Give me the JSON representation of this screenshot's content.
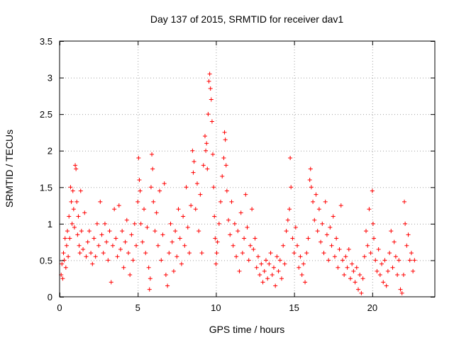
{
  "chart_data": {
    "type": "scatter",
    "title": "Day 137 of 2015, SRMTID for receiver dav1",
    "xlabel": "GPS time / hours",
    "ylabel": "SRMTID / TECUs",
    "xlim": [
      0,
      24
    ],
    "ylim": [
      0,
      3.5
    ],
    "xticks": [
      0,
      5,
      10,
      15,
      20
    ],
    "xtick_labels": [
      "0",
      "5",
      "10",
      "15",
      "20"
    ],
    "yticks": [
      0,
      0.5,
      1,
      1.5,
      2,
      2.5,
      3,
      3.5
    ],
    "ytick_labels": [
      "0",
      "0.5",
      "1",
      "1.5",
      "2",
      "2.5",
      "3",
      "3.5"
    ],
    "grid": true,
    "marker": "+",
    "color": "#ff0000",
    "series": [
      {
        "name": "dav1",
        "points": [
          [
            0.1,
            0.3
          ],
          [
            0.15,
            0.45
          ],
          [
            0.2,
            0.25
          ],
          [
            0.25,
            0.6
          ],
          [
            0.3,
            0.5
          ],
          [
            0.35,
            0.8
          ],
          [
            0.4,
            0.4
          ],
          [
            0.45,
            0.7
          ],
          [
            0.5,
            0.9
          ],
          [
            0.55,
            0.55
          ],
          [
            0.6,
            1.1
          ],
          [
            0.65,
            0.8
          ],
          [
            0.7,
            1.5
          ],
          [
            0.75,
            1.3
          ],
          [
            0.8,
            1.0
          ],
          [
            0.85,
            1.45
          ],
          [
            0.9,
            1.2
          ],
          [
            0.95,
            0.95
          ],
          [
            1.0,
            1.8
          ],
          [
            1.05,
            1.75
          ],
          [
            1.1,
            1.3
          ],
          [
            1.15,
            0.85
          ],
          [
            1.2,
            1.1
          ],
          [
            1.25,
            0.7
          ],
          [
            1.3,
            0.6
          ],
          [
            1.35,
            1.45
          ],
          [
            1.4,
            0.9
          ],
          [
            1.5,
            0.65
          ],
          [
            1.6,
            1.15
          ],
          [
            1.7,
            0.55
          ],
          [
            1.8,
            0.75
          ],
          [
            1.9,
            0.9
          ],
          [
            2.0,
            0.6
          ],
          [
            2.1,
            0.45
          ],
          [
            2.2,
            0.8
          ],
          [
            2.3,
            0.55
          ],
          [
            2.4,
            1.0
          ],
          [
            2.5,
            0.7
          ],
          [
            2.6,
            1.3
          ],
          [
            2.7,
            0.85
          ],
          [
            2.8,
            0.6
          ],
          [
            2.9,
            1.0
          ],
          [
            3.0,
            0.75
          ],
          [
            3.1,
            0.5
          ],
          [
            3.2,
            0.9
          ],
          [
            3.3,
            0.2
          ],
          [
            3.4,
            0.7
          ],
          [
            3.5,
            1.2
          ],
          [
            3.6,
            0.8
          ],
          [
            3.7,
            0.55
          ],
          [
            3.8,
            1.25
          ],
          [
            3.9,
            0.65
          ],
          [
            4.0,
            0.9
          ],
          [
            4.1,
            0.4
          ],
          [
            4.2,
            0.75
          ],
          [
            4.3,
            1.05
          ],
          [
            4.4,
            0.6
          ],
          [
            4.5,
            0.3
          ],
          [
            4.6,
            0.85
          ],
          [
            4.7,
            0.5
          ],
          [
            4.8,
            1.0
          ],
          [
            4.9,
            0.7
          ],
          [
            5.0,
            1.3
          ],
          [
            5.05,
            1.9
          ],
          [
            5.1,
            1.6
          ],
          [
            5.15,
            1.45
          ],
          [
            5.2,
            1.0
          ],
          [
            5.3,
            0.75
          ],
          [
            5.4,
            1.2
          ],
          [
            5.5,
            0.6
          ],
          [
            5.6,
            0.95
          ],
          [
            5.7,
            0.4
          ],
          [
            5.75,
            0.1
          ],
          [
            5.8,
            0.25
          ],
          [
            5.85,
            1.5
          ],
          [
            5.9,
            1.95
          ],
          [
            5.95,
            1.75
          ],
          [
            6.0,
            1.3
          ],
          [
            6.1,
            0.9
          ],
          [
            6.2,
            1.15
          ],
          [
            6.3,
            0.7
          ],
          [
            6.4,
            1.45
          ],
          [
            6.5,
            0.5
          ],
          [
            6.6,
            0.85
          ],
          [
            6.7,
            1.55
          ],
          [
            6.8,
            0.3
          ],
          [
            6.9,
            0.15
          ],
          [
            7.0,
            0.6
          ],
          [
            7.1,
            1.0
          ],
          [
            7.2,
            0.75
          ],
          [
            7.3,
            0.35
          ],
          [
            7.4,
            0.9
          ],
          [
            7.5,
            0.55
          ],
          [
            7.6,
            1.2
          ],
          [
            7.7,
            0.8
          ],
          [
            7.8,
            0.45
          ],
          [
            7.9,
            1.1
          ],
          [
            8.0,
            0.7
          ],
          [
            8.1,
            1.5
          ],
          [
            8.2,
            0.95
          ],
          [
            8.3,
            0.6
          ],
          [
            8.4,
            1.25
          ],
          [
            8.5,
            2.0
          ],
          [
            8.55,
            1.7
          ],
          [
            8.6,
            1.85
          ],
          [
            8.7,
            1.2
          ],
          [
            8.8,
            1.55
          ],
          [
            8.9,
            0.9
          ],
          [
            9.0,
            1.4
          ],
          [
            9.1,
            0.6
          ],
          [
            9.2,
            1.8
          ],
          [
            9.3,
            2.2
          ],
          [
            9.35,
            2.0
          ],
          [
            9.4,
            2.1
          ],
          [
            9.45,
            1.75
          ],
          [
            9.5,
            2.5
          ],
          [
            9.55,
            2.95
          ],
          [
            9.6,
            3.05
          ],
          [
            9.65,
            2.85
          ],
          [
            9.7,
            2.7
          ],
          [
            9.75,
            2.4
          ],
          [
            9.8,
            1.95
          ],
          [
            9.85,
            1.5
          ],
          [
            9.9,
            1.1
          ],
          [
            9.95,
            0.8
          ],
          [
            10.0,
            0.45
          ],
          [
            10.05,
            0.6
          ],
          [
            10.1,
            0.75
          ],
          [
            10.2,
            1.0
          ],
          [
            10.3,
            1.3
          ],
          [
            10.4,
            1.65
          ],
          [
            10.5,
            1.9
          ],
          [
            10.55,
            2.25
          ],
          [
            10.6,
            2.15
          ],
          [
            10.65,
            1.8
          ],
          [
            10.7,
            1.45
          ],
          [
            10.8,
            1.05
          ],
          [
            10.9,
            0.85
          ],
          [
            11.0,
            1.3
          ],
          [
            11.1,
            0.7
          ],
          [
            11.2,
            1.0
          ],
          [
            11.3,
            0.55
          ],
          [
            11.4,
            0.9
          ],
          [
            11.5,
            0.35
          ],
          [
            11.6,
            1.15
          ],
          [
            11.7,
            0.6
          ],
          [
            11.8,
            0.8
          ],
          [
            11.9,
            1.4
          ],
          [
            12.0,
            0.95
          ],
          [
            12.1,
            0.5
          ],
          [
            12.2,
            0.7
          ],
          [
            12.3,
            1.2
          ],
          [
            12.4,
            0.65
          ],
          [
            12.5,
            0.8
          ],
          [
            12.6,
            0.4
          ],
          [
            12.7,
            0.55
          ],
          [
            12.8,
            0.3
          ],
          [
            12.9,
            0.45
          ],
          [
            13.0,
            0.2
          ],
          [
            13.1,
            0.35
          ],
          [
            13.2,
            0.5
          ],
          [
            13.3,
            0.25
          ],
          [
            13.4,
            0.45
          ],
          [
            13.5,
            0.6
          ],
          [
            13.6,
            0.3
          ],
          [
            13.7,
            0.4
          ],
          [
            13.8,
            0.15
          ],
          [
            13.9,
            0.55
          ],
          [
            14.0,
            0.35
          ],
          [
            14.1,
            0.5
          ],
          [
            14.2,
            0.25
          ],
          [
            14.3,
            0.7
          ],
          [
            14.4,
            0.45
          ],
          [
            14.5,
            0.9
          ],
          [
            14.6,
            1.05
          ],
          [
            14.7,
            1.2
          ],
          [
            14.75,
            1.9
          ],
          [
            14.8,
            1.5
          ],
          [
            14.9,
            0.8
          ],
          [
            15.0,
            0.6
          ],
          [
            15.1,
            0.95
          ],
          [
            15.2,
            0.7
          ],
          [
            15.3,
            0.4
          ],
          [
            15.4,
            0.55
          ],
          [
            15.5,
            0.3
          ],
          [
            15.6,
            0.45
          ],
          [
            15.7,
            0.2
          ],
          [
            15.8,
            0.6
          ],
          [
            15.9,
            0.8
          ],
          [
            16.0,
            1.6
          ],
          [
            16.05,
            1.75
          ],
          [
            16.1,
            1.5
          ],
          [
            16.2,
            1.3
          ],
          [
            16.3,
            1.05
          ],
          [
            16.4,
            1.4
          ],
          [
            16.5,
            0.9
          ],
          [
            16.6,
            1.2
          ],
          [
            16.7,
            0.75
          ],
          [
            16.8,
            1.0
          ],
          [
            16.9,
            0.6
          ],
          [
            17.0,
            1.3
          ],
          [
            17.1,
            0.85
          ],
          [
            17.2,
            0.5
          ],
          [
            17.3,
            0.95
          ],
          [
            17.4,
            0.7
          ],
          [
            17.5,
            1.1
          ],
          [
            17.6,
            0.55
          ],
          [
            17.7,
            0.8
          ],
          [
            17.8,
            0.4
          ],
          [
            17.9,
            0.65
          ],
          [
            18.0,
            1.25
          ],
          [
            18.1,
            0.5
          ],
          [
            18.2,
            0.3
          ],
          [
            18.3,
            0.55
          ],
          [
            18.4,
            0.4
          ],
          [
            18.5,
            0.65
          ],
          [
            18.6,
            0.25
          ],
          [
            18.7,
            0.45
          ],
          [
            18.8,
            0.35
          ],
          [
            18.9,
            0.2
          ],
          [
            19.0,
            0.4
          ],
          [
            19.1,
            0.1
          ],
          [
            19.2,
            0.3
          ],
          [
            19.3,
            0.05
          ],
          [
            19.4,
            0.25
          ],
          [
            19.5,
            0.55
          ],
          [
            19.6,
            0.9
          ],
          [
            19.7,
            0.7
          ],
          [
            19.8,
            1.2
          ],
          [
            19.9,
            0.6
          ],
          [
            20.0,
            1.45
          ],
          [
            20.05,
            1.0
          ],
          [
            20.1,
            0.8
          ],
          [
            20.2,
            0.5
          ],
          [
            20.3,
            0.35
          ],
          [
            20.4,
            0.65
          ],
          [
            20.5,
            0.3
          ],
          [
            20.6,
            0.45
          ],
          [
            20.7,
            0.2
          ],
          [
            20.8,
            0.5
          ],
          [
            20.9,
            0.15
          ],
          [
            21.0,
            0.35
          ],
          [
            21.1,
            0.6
          ],
          [
            21.2,
            0.9
          ],
          [
            21.3,
            0.4
          ],
          [
            21.4,
            0.75
          ],
          [
            21.5,
            0.55
          ],
          [
            21.6,
            0.3
          ],
          [
            21.7,
            0.5
          ],
          [
            21.8,
            0.1
          ],
          [
            21.9,
            0.05
          ],
          [
            22.0,
            0.3
          ],
          [
            22.05,
            1.3
          ],
          [
            22.1,
            1.0
          ],
          [
            22.2,
            0.7
          ],
          [
            22.3,
            0.85
          ],
          [
            22.4,
            0.5
          ],
          [
            22.5,
            0.6
          ],
          [
            22.6,
            0.35
          ],
          [
            22.7,
            0.5
          ]
        ]
      }
    ]
  }
}
